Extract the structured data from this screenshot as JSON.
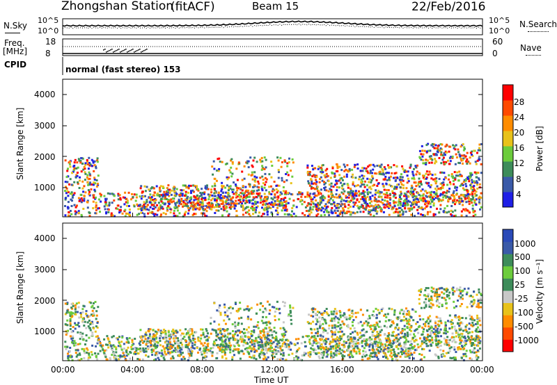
{
  "header": {
    "station": "Zhongshan Station",
    "mode": "(fitACF)",
    "beam": "Beam 15",
    "date": "22/Feb/2016"
  },
  "noise_panel": {
    "left_label": "N.Sky",
    "left_ticks": [
      "10^5",
      "10^0"
    ],
    "right_ticks": [
      "10^5",
      "10^0"
    ],
    "right_label": "N.Search"
  },
  "freq_panel": {
    "left_label_1": "Freq.",
    "left_label_2": "[MHz]",
    "left_ticks": [
      "18",
      "8"
    ],
    "right_ticks": [
      "60",
      "0"
    ],
    "right_label": "Nave"
  },
  "cpid_panel": {
    "left_label": "CPID",
    "text": "normal (fast stereo) 153"
  },
  "colors": {
    "power_scale": [
      "#1f1fe6",
      "#3a5aa8",
      "#3d8c5a",
      "#6ccc3c",
      "#e8c21a",
      "#ff8c00",
      "#ff4a00",
      "#ff0000"
    ],
    "velocity_scale": [
      "#ff0000",
      "#ff4a00",
      "#ff8c00",
      "#e8c21a",
      "#c8c8c8",
      "#3d8c5a",
      "#6ccc3c",
      "#3d8c5a",
      "#3a5aa8",
      "#2a4ab8"
    ]
  },
  "chart_data": [
    {
      "type": "heatmap",
      "name_hint": "power",
      "ylabel": "Slant Range [km]",
      "y_ticks": [
        "1000",
        "2000",
        "3000",
        "4000"
      ],
      "ylim": [
        180,
        4600
      ],
      "x_ticks": [
        "00:00",
        "04:00",
        "08:00",
        "12:00",
        "16:00",
        "20:00",
        "00:00"
      ],
      "colorbar_label": "Power [dB]",
      "colorbar_ticks": [
        "4",
        "8",
        "12",
        "16",
        "20",
        "24",
        "28"
      ]
    },
    {
      "type": "heatmap",
      "name_hint": "velocity",
      "ylabel": "Slant Range [km]",
      "y_ticks": [
        "1000",
        "2000",
        "3000",
        "4000"
      ],
      "ylim": [
        180,
        4600
      ],
      "x_ticks": [
        "00:00",
        "04:00",
        "08:00",
        "12:00",
        "16:00",
        "20:00",
        "00:00"
      ],
      "xlabel": "Time UT",
      "colorbar_label": "Velocity [m s⁻¹]",
      "colorbar_ticks": [
        "1000",
        "500",
        "100",
        "25",
        "-25",
        "-100",
        "-500",
        "-1000"
      ]
    }
  ]
}
